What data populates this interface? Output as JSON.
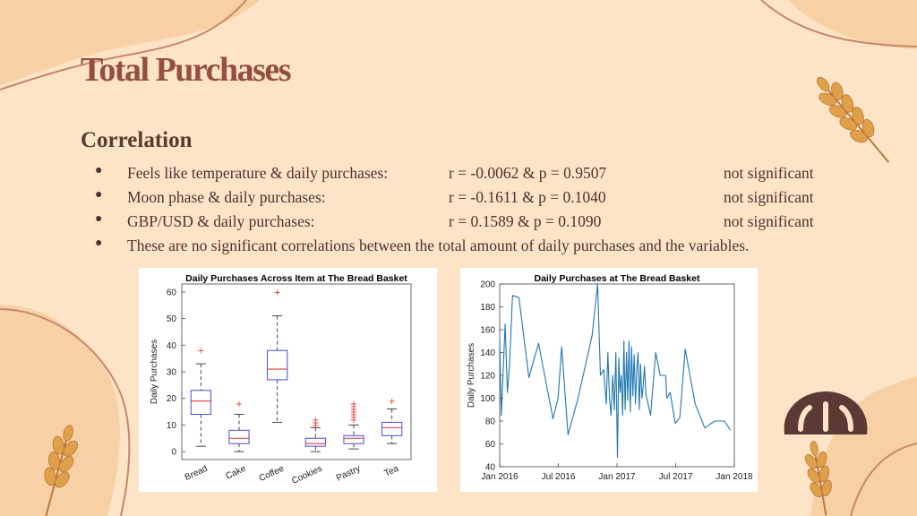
{
  "slide": {
    "title": "Total Purchases",
    "subtitle": "Correlation",
    "bullets": [
      {
        "text": "Feels like temperature & daily purchases:",
        "stat": "r = -0.0062 & p = 0.9507",
        "sig": "not significant"
      },
      {
        "text": "Moon phase & daily purchases:",
        "stat": "r = -0.1611 & p = 0.1040",
        "sig": "not significant"
      },
      {
        "text": "GBP/USD & daily purchases:",
        "stat": "r = 0.1589 & p = 0.1090",
        "sig": "not significant"
      },
      {
        "text": "These are no significant correlations between the total amount of daily purchases and the variables.",
        "stat": "",
        "sig": ""
      }
    ],
    "bullet_char": "●"
  },
  "colors": {
    "background": "#fde4c6",
    "title": "#94503f",
    "text": "#4a3430",
    "accent_blob": "#f7d0a6",
    "line": "#1f77b4",
    "box": "#4b4bd6",
    "median": "#e03a3a",
    "outlier": "#e03a3a"
  },
  "icons": {
    "wheat": "wheat-icon",
    "bread": "bread-loaf-icon"
  },
  "chart_data": [
    {
      "type": "box",
      "title": "Daily Purchases Across Item at The Bread Basket",
      "xlabel": "",
      "ylabel": "Daily Purchases",
      "ylim": [
        -3,
        63
      ],
      "yticks": [
        0,
        10,
        20,
        30,
        40,
        50,
        60
      ],
      "grid": false,
      "categories": [
        "Bread",
        "Cake",
        "Coffee",
        "Cookies",
        "Pastry",
        "Tea"
      ],
      "boxes": [
        {
          "name": "Bread",
          "min": 2,
          "q1": 14,
          "median": 19,
          "q3": 23,
          "max": 33,
          "outliers": [
            38
          ]
        },
        {
          "name": "Cake",
          "min": 0,
          "q1": 3,
          "median": 5,
          "q3": 8,
          "max": 14,
          "outliers": [
            18
          ]
        },
        {
          "name": "Coffee",
          "min": 11,
          "q1": 27,
          "median": 31,
          "q3": 38,
          "max": 51,
          "outliers": [
            60
          ]
        },
        {
          "name": "Cookies",
          "min": 0,
          "q1": 2,
          "median": 3,
          "q3": 5,
          "max": 9,
          "outliers": [
            10,
            11,
            12
          ]
        },
        {
          "name": "Pastry",
          "min": 1,
          "q1": 3,
          "median": 5,
          "q3": 6,
          "max": 10,
          "outliers": [
            12,
            13,
            14,
            15,
            16,
            17,
            18
          ]
        },
        {
          "name": "Tea",
          "min": 3,
          "q1": 6,
          "median": 9,
          "q3": 11,
          "max": 16,
          "outliers": [
            19
          ]
        }
      ]
    },
    {
      "type": "line",
      "title": "Daily Purchases at The Bread Basket",
      "xlabel": "",
      "ylabel": "Daily Purchases",
      "ylim": [
        40,
        200
      ],
      "yticks": [
        40,
        60,
        80,
        100,
        120,
        140,
        160,
        180,
        200
      ],
      "xticks": [
        "Jan 2016",
        "Jul 2016",
        "Jan 2017",
        "Jul 2017",
        "Jan 2018"
      ],
      "xlim": [
        "2016-01-01",
        "2018-01-01"
      ],
      "grid": false,
      "series": [
        {
          "x": [
            "2016-01-01",
            "2016-01-06",
            "2016-01-11",
            "2016-01-18",
            "2016-01-25",
            "2016-02-01",
            "2016-02-10",
            "2016-03-01",
            "2016-04-01",
            "2016-05-01",
            "2016-06-15",
            "2016-07-01",
            "2016-07-12",
            "2016-08-01",
            "2016-09-01",
            "2016-10-15",
            "2016-11-01",
            "2016-11-10",
            "2016-11-20",
            "2016-11-28",
            "2016-12-03",
            "2016-12-08",
            "2016-12-13",
            "2016-12-18",
            "2016-12-23",
            "2016-12-28",
            "2017-01-02",
            "2017-01-06",
            "2017-01-10",
            "2017-01-14",
            "2017-01-18",
            "2017-01-22",
            "2017-01-26",
            "2017-01-30",
            "2017-02-03",
            "2017-02-07",
            "2017-02-11",
            "2017-02-15",
            "2017-02-19",
            "2017-02-23",
            "2017-02-27",
            "2017-03-03",
            "2017-03-07",
            "2017-03-11",
            "2017-03-15",
            "2017-03-19",
            "2017-03-23",
            "2017-03-27",
            "2017-04-01",
            "2017-04-15",
            "2017-05-01",
            "2017-05-15",
            "2017-06-01",
            "2017-06-05",
            "2017-06-15",
            "2017-07-01",
            "2017-07-15",
            "2017-08-01",
            "2017-09-01",
            "2017-10-01",
            "2017-11-01",
            "2017-12-01",
            "2017-12-20"
          ],
          "y": [
            150,
            85,
            118,
            165,
            105,
            130,
            190,
            188,
            118,
            148,
            82,
            100,
            145,
            68,
            100,
            155,
            200,
            120,
            125,
            95,
            140,
            100,
            85,
            120,
            90,
            140,
            48,
            135,
            105,
            120,
            85,
            150,
            90,
            140,
            98,
            150,
            88,
            145,
            102,
            138,
            95,
            125,
            140,
            90,
            130,
            100,
            110,
            128,
            103,
            85,
            140,
            120,
            120,
            100,
            105,
            78,
            83,
            143,
            95,
            74,
            80,
            80,
            72
          ]
        }
      ]
    }
  ]
}
